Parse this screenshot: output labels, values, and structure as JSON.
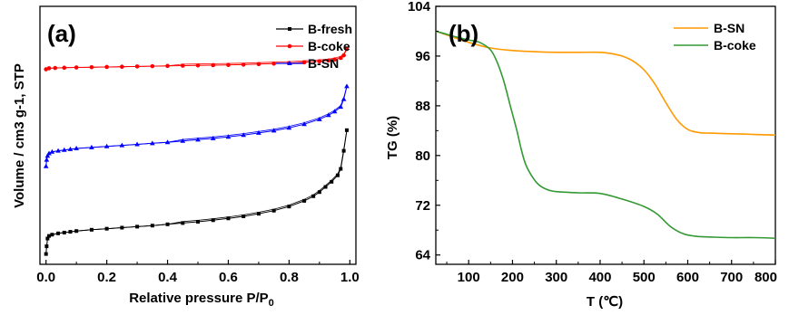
{
  "chart_data": [
    {
      "type": "line",
      "panel_label": "(a)",
      "xlabel": "Relative pressure P/P",
      "xlabel_sub": "0",
      "ylabel": "Volume / cm3 g-1, STP",
      "xlim": [
        -0.02,
        1.02
      ],
      "ylim": [
        0,
        100
      ],
      "x_ticks": [
        "0.0",
        "0.2",
        "0.4",
        "0.6",
        "0.8",
        "1.0"
      ],
      "y_ticks_shown": false,
      "grid": false,
      "legend_position": "top-right",
      "series": [
        {
          "name": "B-fresh",
          "color": "#000000",
          "marker": "square",
          "x": [
            0.0,
            0.002,
            0.005,
            0.01,
            0.02,
            0.04,
            0.06,
            0.08,
            0.1,
            0.15,
            0.2,
            0.25,
            0.3,
            0.35,
            0.4,
            0.45,
            0.5,
            0.55,
            0.6,
            0.65,
            0.7,
            0.75,
            0.8,
            0.85,
            0.88,
            0.9,
            0.92,
            0.94,
            0.96,
            0.97,
            0.98,
            0.99
          ],
          "y": [
            4,
            7,
            10,
            11,
            11.5,
            12,
            12.3,
            12.6,
            12.9,
            13.4,
            13.8,
            14.2,
            14.6,
            15.0,
            15.5,
            16.0,
            16.5,
            17.1,
            17.8,
            18.6,
            19.6,
            20.8,
            22.4,
            24.6,
            26.4,
            28.0,
            30.0,
            32.0,
            34.5,
            37.0,
            44.0,
            52.0
          ]
        },
        {
          "name": "B-coke",
          "color": "#ff0000",
          "marker": "circle",
          "x": [
            0.0,
            0.01,
            0.03,
            0.06,
            0.1,
            0.15,
            0.2,
            0.25,
            0.3,
            0.35,
            0.4,
            0.45,
            0.5,
            0.55,
            0.6,
            0.65,
            0.7,
            0.75,
            0.8,
            0.85,
            0.9,
            0.93,
            0.95,
            0.97,
            0.98,
            0.99
          ],
          "y": [
            75.6,
            76.0,
            76.1,
            76.2,
            76.3,
            76.4,
            76.5,
            76.6,
            76.7,
            76.8,
            76.9,
            77.0,
            77.1,
            77.2,
            77.3,
            77.4,
            77.6,
            77.8,
            78.0,
            78.3,
            78.7,
            79.0,
            79.4,
            80.0,
            81.0,
            83.5
          ]
        },
        {
          "name": "B-SN",
          "color": "#0000ff",
          "marker": "triangle",
          "x": [
            0.0,
            0.002,
            0.005,
            0.01,
            0.02,
            0.04,
            0.06,
            0.08,
            0.1,
            0.15,
            0.2,
            0.25,
            0.3,
            0.35,
            0.4,
            0.45,
            0.5,
            0.55,
            0.6,
            0.65,
            0.7,
            0.75,
            0.8,
            0.85,
            0.9,
            0.93,
            0.95,
            0.97,
            0.98,
            0.99
          ],
          "y": [
            38,
            40.5,
            42,
            43,
            43.6,
            44.0,
            44.3,
            44.6,
            44.9,
            45.3,
            45.7,
            46.1,
            46.5,
            46.9,
            47.3,
            47.8,
            48.3,
            48.8,
            49.4,
            50.1,
            50.9,
            51.8,
            52.9,
            54.3,
            56.2,
            57.8,
            59.2,
            61.0,
            64.0,
            69.0
          ]
        }
      ]
    },
    {
      "type": "line",
      "panel_label": "(b)",
      "xlabel": "T (℃)",
      "ylabel": "TG (%)",
      "xlim": [
        25,
        800
      ],
      "ylim": [
        62.5,
        104
      ],
      "x_ticks": [
        "100",
        "200",
        "300",
        "400",
        "500",
        "600",
        "700",
        "800"
      ],
      "y_ticks": [
        "64",
        "72",
        "80",
        "88",
        "96",
        "104"
      ],
      "grid": false,
      "legend_position": "top-right",
      "series": [
        {
          "name": "B-SN",
          "color": "#ff9900",
          "x": [
            25,
            50,
            100,
            150,
            200,
            250,
            300,
            350,
            400,
            425,
            450,
            475,
            500,
            525,
            550,
            575,
            600,
            625,
            650,
            700,
            750,
            800
          ],
          "y": [
            100.0,
            99.4,
            98.2,
            97.3,
            96.9,
            96.7,
            96.6,
            96.6,
            96.6,
            96.4,
            96.0,
            95.2,
            93.8,
            91.5,
            88.5,
            85.8,
            84.2,
            83.7,
            83.6,
            83.5,
            83.4,
            83.3
          ]
        },
        {
          "name": "B-coke",
          "color": "#339933",
          "x": [
            25,
            50,
            75,
            100,
            125,
            150,
            165,
            180,
            195,
            210,
            220,
            230,
            245,
            260,
            280,
            300,
            350,
            400,
            450,
            500,
            530,
            560,
            590,
            620,
            650,
            700,
            750,
            800
          ],
          "y": [
            100.0,
            99.5,
            99.0,
            98.6,
            98.2,
            97.0,
            95.0,
            92.0,
            88.0,
            84.0,
            81.0,
            78.6,
            76.6,
            75.3,
            74.5,
            74.2,
            74.0,
            73.9,
            73.0,
            71.8,
            70.6,
            68.6,
            67.4,
            67.0,
            66.9,
            66.8,
            66.8,
            66.7
          ]
        }
      ]
    }
  ]
}
